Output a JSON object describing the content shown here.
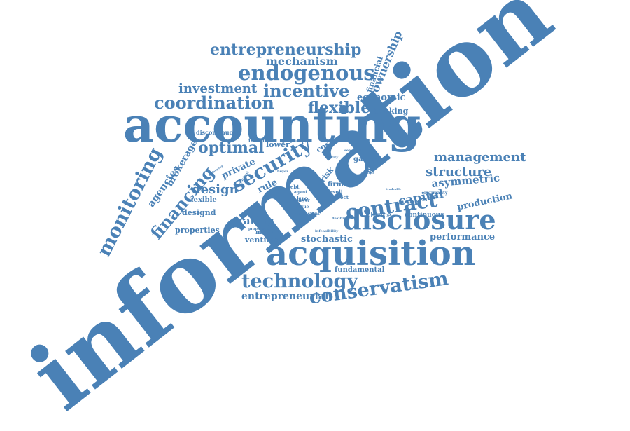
{
  "colors": {
    "word": "#4a81b6",
    "background": "#ffffff"
  },
  "words": [
    "information",
    "accounting",
    "acquisition",
    "disclosure",
    "conservatism",
    "technology",
    "endogenous",
    "coordination",
    "entrepreneurship",
    "incentive",
    "investment",
    "flexible",
    "mechanism",
    "economic",
    "banking",
    "financial",
    "ownership",
    "security",
    "optimal",
    "monitoring",
    "financing",
    "design",
    "agencies",
    "brokerage",
    "management",
    "structure",
    "asymmetric",
    "capital",
    "production",
    "contract",
    "performance",
    "stochastic",
    "fundamental",
    "entrepreneurial",
    "rating",
    "venture",
    "market",
    "properties",
    "designd",
    "áexible",
    "private",
    "rule",
    "firm",
    "risk",
    "cost",
    "game",
    "policy",
    "lower",
    "investor",
    "discontinuous",
    "choice",
    "continuous",
    "value",
    "player",
    "unique",
    "result",
    "perfect",
    "agent",
    "debt",
    "optimality",
    "consistent",
    "infeasibility",
    "flexibility",
    "proportion",
    "efficient",
    "signaling",
    "principal",
    "selection",
    "buyer",
    "bond",
    "entity",
    "underlying",
    "multiple",
    "tradeable"
  ]
}
